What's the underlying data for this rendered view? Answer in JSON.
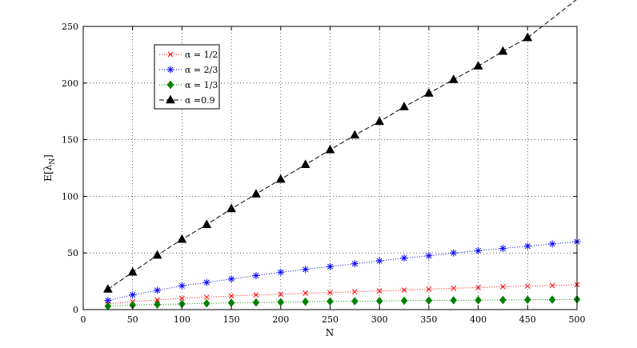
{
  "chart_data": {
    "type": "line",
    "title": "",
    "xlabel": "N",
    "ylabel": "E[λ_N]",
    "ylabel_main": "E[",
    "ylabel_sym": "λ",
    "ylabel_sub": "N",
    "ylabel_close": "]",
    "xlim": [
      0,
      500
    ],
    "ylim": [
      0,
      250
    ],
    "xticks": [
      0,
      50,
      100,
      150,
      200,
      250,
      300,
      350,
      400,
      450,
      500
    ],
    "yticks": [
      0,
      50,
      100,
      150,
      200,
      250
    ],
    "grid": true,
    "legend_position": "top-left",
    "x": [
      25,
      50,
      75,
      100,
      125,
      150,
      175,
      200,
      225,
      250,
      275,
      300,
      325,
      350,
      375,
      400,
      425,
      450,
      475,
      500
    ],
    "series": [
      {
        "name": "α = 1/2",
        "color": "#ff0000",
        "marker": "x",
        "line": "dotted",
        "values": [
          5,
          7,
          8.5,
          10,
          11,
          12,
          13,
          13.5,
          14.5,
          15,
          15.8,
          16.5,
          17.2,
          18,
          18.8,
          19.5,
          20.2,
          20.8,
          21.3,
          22
        ]
      },
      {
        "name": "α = 2/3",
        "color": "#0000ff",
        "marker": "star",
        "line": "dotted",
        "values": [
          8,
          13,
          17,
          21,
          24,
          27,
          30,
          33,
          35.5,
          38,
          40.5,
          43,
          45.5,
          47.5,
          50,
          52,
          54,
          56,
          58,
          60
        ]
      },
      {
        "name": "α = 1/3",
        "color": "#008000",
        "marker": "diamond",
        "line": "dotted",
        "values": [
          3,
          4,
          4.5,
          5,
          5.5,
          6,
          6.3,
          6.6,
          7,
          7.2,
          7.4,
          7.6,
          7.8,
          8,
          8.2,
          8.3,
          8.5,
          8.7,
          8.8,
          9
        ]
      },
      {
        "name": "α =0.9",
        "color": "#000000",
        "marker": "triangle",
        "line": "dashed",
        "values": [
          18,
          33,
          48,
          62,
          75,
          89,
          102,
          115,
          128,
          141,
          154,
          166,
          179,
          191,
          203,
          215,
          228,
          240,
          null,
          null
        ],
        "line_extends_to": [
          500,
          274
        ]
      }
    ]
  }
}
